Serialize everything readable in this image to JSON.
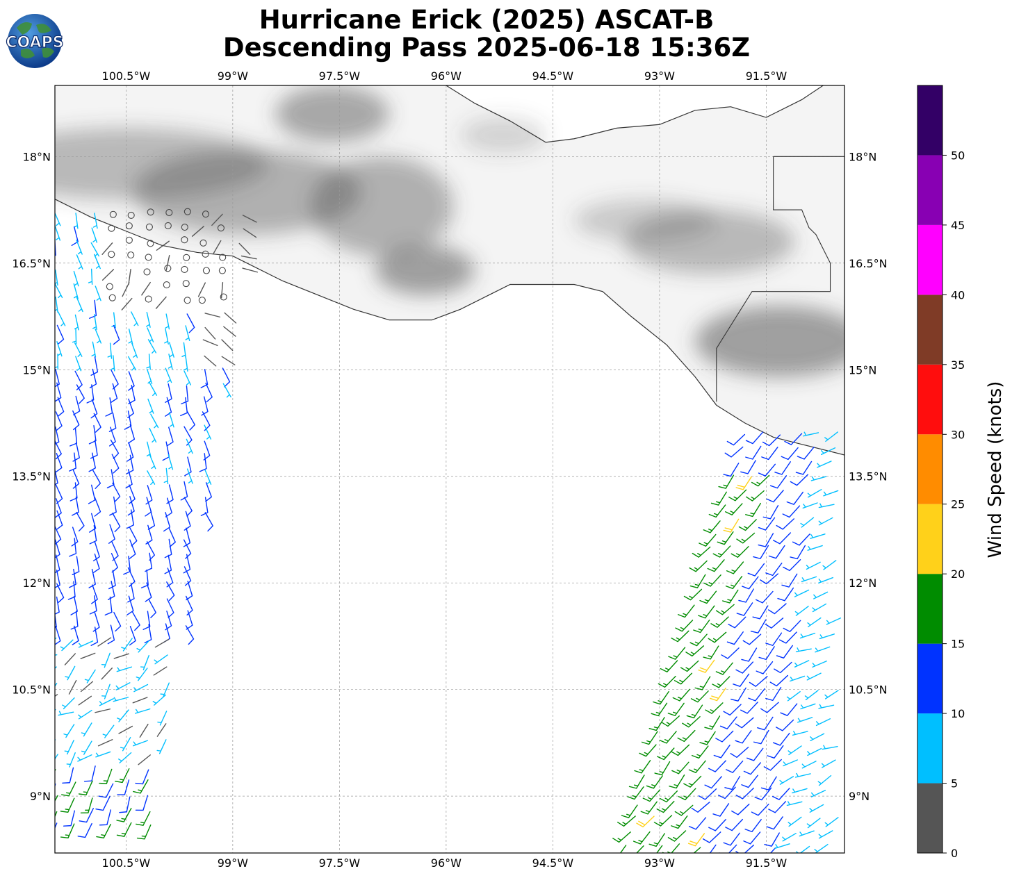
{
  "title_line1": "Hurricane Erick (2025) ASCAT-B",
  "title_line2": "Descending Pass 2025-06-18 15:36Z",
  "logo_text": "COAPS",
  "colorbar": {
    "label": "Wind Speed (knots)",
    "ticks": [
      "0",
      "5",
      "10",
      "15",
      "20",
      "25",
      "30",
      "35",
      "40",
      "45",
      "50"
    ],
    "bins": [
      {
        "min": 0,
        "max": 5,
        "color": "#555555"
      },
      {
        "min": 5,
        "max": 10,
        "color": "#00bfff"
      },
      {
        "min": 10,
        "max": 15,
        "color": "#0033ff"
      },
      {
        "min": 15,
        "max": 20,
        "color": "#008c00"
      },
      {
        "min": 20,
        "max": 25,
        "color": "#ffd11a"
      },
      {
        "min": 25,
        "max": 30,
        "color": "#ff8c00"
      },
      {
        "min": 30,
        "max": 35,
        "color": "#ff0d0d"
      },
      {
        "min": 35,
        "max": 40,
        "color": "#7f3b26"
      },
      {
        "min": 40,
        "max": 45,
        "color": "#ff00ff"
      },
      {
        "min": 45,
        "max": 50,
        "color": "#8800b3"
      },
      {
        "min": 50,
        "max": 55,
        "color": "#330066"
      }
    ]
  },
  "map": {
    "lon_range": [
      -101.5,
      -90.4
    ],
    "lat_range": [
      8.2,
      19.0
    ],
    "lon_ticks": [
      {
        "value": -100.5,
        "label": "100.5°W"
      },
      {
        "value": -99,
        "label": "99°W"
      },
      {
        "value": -97.5,
        "label": "97.5°W"
      },
      {
        "value": -96,
        "label": "96°W"
      },
      {
        "value": -94.5,
        "label": "94.5°W"
      },
      {
        "value": -93,
        "label": "93°W"
      },
      {
        "value": -91.5,
        "label": "91.5°W"
      }
    ],
    "lat_ticks": [
      {
        "value": 18,
        "label": "18°N"
      },
      {
        "value": 16.5,
        "label": "16.5°N"
      },
      {
        "value": 15,
        "label": "15°N"
      },
      {
        "value": 13.5,
        "label": "13.5°N"
      },
      {
        "value": 12,
        "label": "12°N"
      },
      {
        "value": 10.5,
        "label": "10.5°N"
      },
      {
        "value": 9,
        "label": "9°N"
      }
    ],
    "coastline": [
      [
        -101.5,
        17.4
      ],
      [
        -101.0,
        17.15
      ],
      [
        -100.5,
        16.95
      ],
      [
        -100.0,
        16.75
      ],
      [
        -99.5,
        16.65
      ],
      [
        -99.0,
        16.6
      ],
      [
        -98.8,
        16.5
      ],
      [
        -98.3,
        16.25
      ],
      [
        -97.8,
        16.05
      ],
      [
        -97.3,
        15.85
      ],
      [
        -96.8,
        15.7
      ],
      [
        -96.2,
        15.7
      ],
      [
        -95.8,
        15.85
      ],
      [
        -95.4,
        16.05
      ],
      [
        -95.1,
        16.2
      ],
      [
        -94.6,
        16.2
      ],
      [
        -94.2,
        16.2
      ],
      [
        -93.8,
        16.1
      ],
      [
        -93.4,
        15.75
      ],
      [
        -92.9,
        15.35
      ],
      [
        -92.5,
        14.9
      ],
      [
        -92.2,
        14.5
      ],
      [
        -91.8,
        14.25
      ],
      [
        -91.4,
        14.05
      ],
      [
        -91.0,
        13.95
      ],
      [
        -90.4,
        13.8
      ]
    ],
    "gulf_coast": [
      [
        -96.0,
        19.0
      ],
      [
        -95.6,
        18.75
      ],
      [
        -95.1,
        18.5
      ],
      [
        -94.6,
        18.2
      ],
      [
        -94.2,
        18.25
      ],
      [
        -93.6,
        18.4
      ],
      [
        -93.0,
        18.45
      ],
      [
        -92.5,
        18.65
      ],
      [
        -92.0,
        18.7
      ],
      [
        -91.5,
        18.55
      ],
      [
        -91.0,
        18.8
      ],
      [
        -90.7,
        19.0
      ]
    ],
    "borders": [
      [
        [
          -91.4,
          18.0
        ],
        [
          -90.4,
          18.0
        ]
      ],
      [
        [
          -91.4,
          18.0
        ],
        [
          -91.4,
          17.25
        ],
        [
          -91.0,
          17.25
        ],
        [
          -90.9,
          17.0
        ],
        [
          -90.8,
          16.9
        ],
        [
          -90.6,
          16.5
        ],
        [
          -90.6,
          16.1
        ],
        [
          -91.7,
          16.1
        ],
        [
          -92.2,
          15.3
        ],
        [
          -92.2,
          14.55
        ]
      ]
    ],
    "mountains": [
      {
        "lon": -100.5,
        "lat": 17.9,
        "rx": 2.0,
        "ry": 0.5,
        "opacity": 0.35
      },
      {
        "lon": -98.8,
        "lat": 17.5,
        "rx": 1.6,
        "ry": 0.6,
        "opacity": 0.4
      },
      {
        "lon": -97.6,
        "lat": 18.6,
        "rx": 0.8,
        "ry": 0.4,
        "opacity": 0.45
      },
      {
        "lon": -96.9,
        "lat": 17.3,
        "rx": 1.0,
        "ry": 0.7,
        "opacity": 0.4
      },
      {
        "lon": -96.3,
        "lat": 16.4,
        "rx": 0.7,
        "ry": 0.35,
        "opacity": 0.5
      },
      {
        "lon": -92.3,
        "lat": 16.8,
        "rx": 1.2,
        "ry": 0.45,
        "opacity": 0.35
      },
      {
        "lon": -91.3,
        "lat": 15.4,
        "rx": 1.2,
        "ry": 0.5,
        "opacity": 0.5
      },
      {
        "lon": -93.2,
        "lat": 17.1,
        "rx": 1.0,
        "ry": 0.3,
        "opacity": 0.25
      },
      {
        "lon": -95.2,
        "lat": 18.3,
        "rx": 0.6,
        "ry": 0.25,
        "opacity": 0.2
      }
    ]
  }
}
